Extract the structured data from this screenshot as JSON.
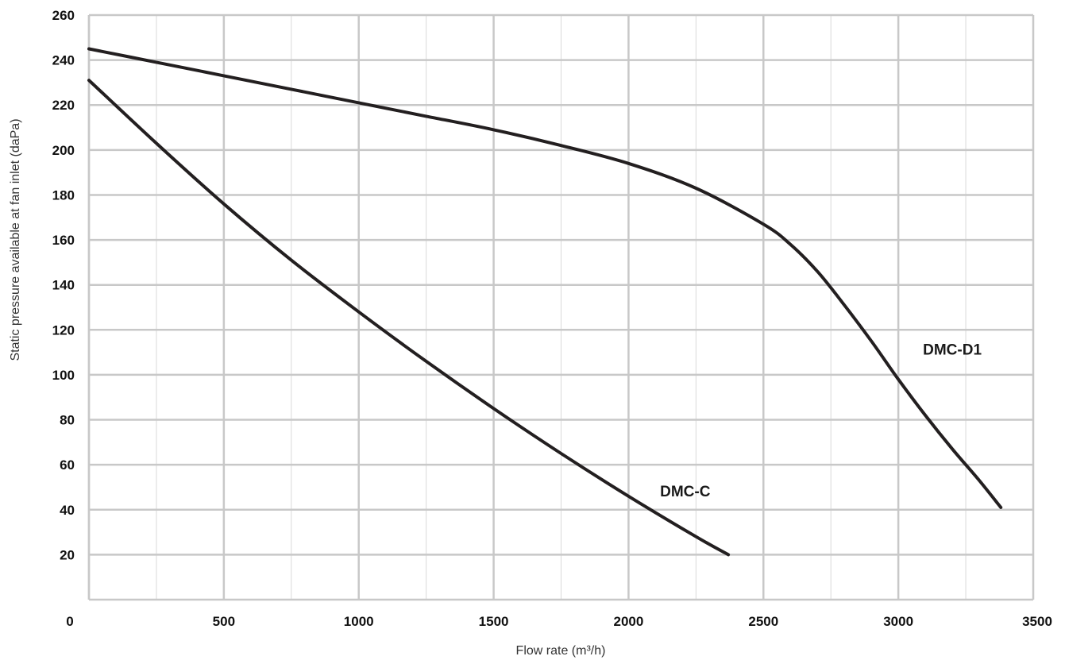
{
  "chart_data": {
    "type": "line",
    "title": "",
    "xlabel": "Flow rate (m³/h)",
    "ylabel": "Static pressure available at fan inlet (daPa)",
    "xlim": [
      0,
      3500
    ],
    "ylim": [
      0,
      260
    ],
    "x_ticks": [
      0,
      500,
      1000,
      1500,
      2000,
      2500,
      3000,
      3500
    ],
    "y_ticks": [
      20,
      40,
      60,
      80,
      100,
      120,
      140,
      160,
      180,
      200,
      220,
      240,
      260
    ],
    "grid": true,
    "line_color": "#231f20",
    "series": [
      {
        "name": "DMC-C",
        "label_at": [
          2210,
          46
        ],
        "x": [
          0,
          250,
          500,
          750,
          1000,
          1250,
          1500,
          1750,
          2000,
          2250,
          2370
        ],
        "y": [
          231,
          203,
          176,
          151,
          128,
          106,
          85,
          65,
          46,
          28,
          20
        ]
      },
      {
        "name": "DMC-D1",
        "label_at": [
          3200,
          109
        ],
        "x": [
          0,
          250,
          500,
          750,
          1000,
          1250,
          1500,
          1750,
          2000,
          2250,
          2500,
          2600,
          2700,
          2800,
          2900,
          3000,
          3100,
          3200,
          3300,
          3380
        ],
        "y": [
          245,
          239,
          233,
          227,
          221,
          215,
          209,
          202,
          194,
          183,
          167,
          158,
          146,
          131,
          115,
          98,
          82,
          67,
          53,
          41
        ]
      }
    ]
  }
}
